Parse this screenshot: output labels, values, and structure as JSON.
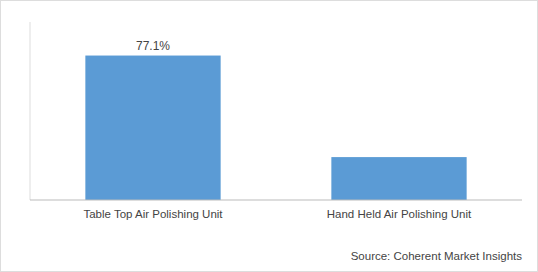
{
  "chart_data": {
    "type": "bar",
    "categories": [
      "Table Top Air Polishing Unit",
      "Hand Held Air Polishing Unit"
    ],
    "values": [
      77.1,
      22.9
    ],
    "value_labels": [
      "77.1%",
      null
    ],
    "data_labels": true,
    "color": "#5b9bd5",
    "ylim": [
      0,
      95
    ],
    "tick_labels": "x",
    "grid": false,
    "source": "Source: Coherent Market Insights"
  }
}
